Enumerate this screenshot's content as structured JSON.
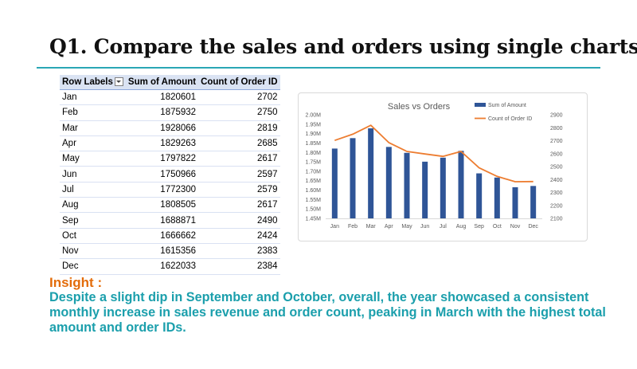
{
  "slide": {
    "title": "Q1. Compare the sales and orders using single charts",
    "insight_heading": "Insight :",
    "insight_text": "Despite a slight dip in September and October, overall, the year showcased a consistent monthly increase in sales revenue and order count, peaking in March with the highest total amount and order IDs."
  },
  "pivot": {
    "headers": [
      "Row Labels",
      "Sum of Amount",
      "Count of Order ID"
    ],
    "rows": [
      {
        "label": "Jan",
        "amount": "1820601",
        "count": "2702"
      },
      {
        "label": "Feb",
        "amount": "1875932",
        "count": "2750"
      },
      {
        "label": "Mar",
        "amount": "1928066",
        "count": "2819"
      },
      {
        "label": "Apr",
        "amount": "1829263",
        "count": "2685"
      },
      {
        "label": "May",
        "amount": "1797822",
        "count": "2617"
      },
      {
        "label": "Jun",
        "amount": "1750966",
        "count": "2597"
      },
      {
        "label": "Jul",
        "amount": "1772300",
        "count": "2579"
      },
      {
        "label": "Aug",
        "amount": "1808505",
        "count": "2617"
      },
      {
        "label": "Sep",
        "amount": "1688871",
        "count": "2490"
      },
      {
        "label": "Oct",
        "amount": "1666662",
        "count": "2424"
      },
      {
        "label": "Nov",
        "amount": "1615356",
        "count": "2383"
      },
      {
        "label": "Dec",
        "amount": "1622033",
        "count": "2384"
      }
    ]
  },
  "chart_data": {
    "type": "bar",
    "title": "Sales vs Orders",
    "categories": [
      "Jan",
      "Feb",
      "Mar",
      "Apr",
      "May",
      "Jun",
      "Jul",
      "Aug",
      "Sep",
      "Oct",
      "Nov",
      "Dec"
    ],
    "series": [
      {
        "name": "Sum of Amount",
        "type": "bar",
        "axis": "left",
        "color": "#2f5597",
        "values": [
          1820601,
          1875932,
          1928066,
          1829263,
          1797822,
          1750966,
          1772300,
          1808505,
          1688871,
          1666662,
          1615356,
          1622033
        ]
      },
      {
        "name": "Count of Order ID",
        "type": "line",
        "axis": "right",
        "color": "#ed7d31",
        "values": [
          2702,
          2750,
          2819,
          2685,
          2617,
          2597,
          2579,
          2617,
          2490,
          2424,
          2383,
          2384
        ]
      }
    ],
    "ylim_left": [
      1450000,
      2000000
    ],
    "yticks_left": [
      "1.45M",
      "1.50M",
      "1.55M",
      "1.60M",
      "1.65M",
      "1.70M",
      "1.75M",
      "1.80M",
      "1.85M",
      "1.90M",
      "1.95M",
      "2.00M"
    ],
    "ylim_right": [
      2100,
      2900
    ],
    "yticks_right": [
      "2100",
      "2200",
      "2300",
      "2400",
      "2500",
      "2600",
      "2700",
      "2800",
      "2900"
    ],
    "grid": false,
    "legend": "top-right"
  }
}
